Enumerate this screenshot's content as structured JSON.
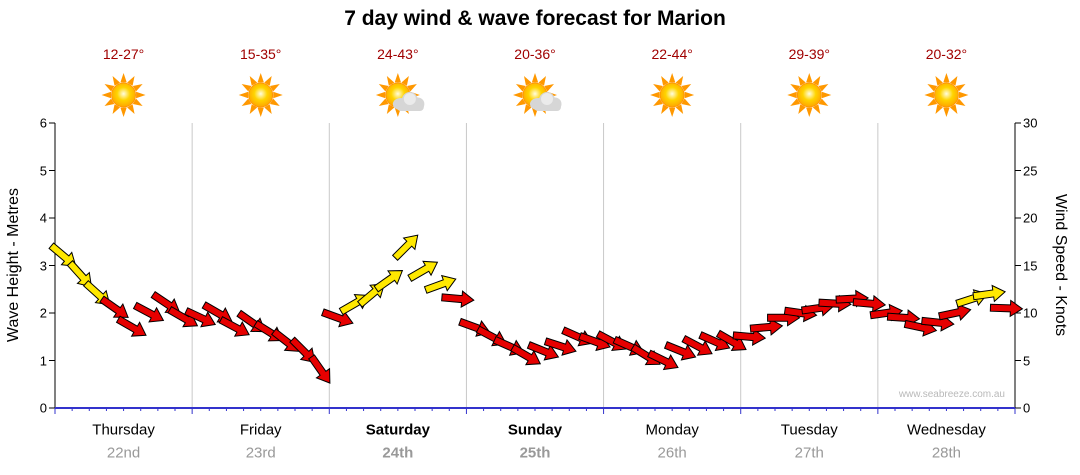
{
  "title": "7 day wind & wave forecast for Marion",
  "watermark": "www.seabreeze.com.au",
  "colors": {
    "red_arrow": "#e60000",
    "yellow_arrow": "#ffe800",
    "grid": "#c9c9c9",
    "axis": "#000000",
    "bottom_axis": "#3333cc",
    "temp_text": "#a00000",
    "date_text": "#999999"
  },
  "left_axis": {
    "title": "Wave Height - Metres",
    "min": 0,
    "max": 6,
    "ticks": [
      0,
      1,
      2,
      3,
      4,
      5,
      6
    ]
  },
  "right_axis": {
    "title": "Wind Speed - Knots",
    "min": 0,
    "max": 30,
    "ticks": [
      0,
      5,
      10,
      15,
      20,
      25,
      30
    ]
  },
  "days": [
    {
      "name": "Thursday",
      "date": "22nd",
      "temp": "12-27°",
      "icon": "sun",
      "weekend": false
    },
    {
      "name": "Friday",
      "date": "23rd",
      "temp": "15-35°",
      "icon": "sun",
      "weekend": false
    },
    {
      "name": "Saturday",
      "date": "24th",
      "temp": "24-43°",
      "icon": "sun-cloud",
      "weekend": true
    },
    {
      "name": "Sunday",
      "date": "25th",
      "temp": "20-36°",
      "icon": "sun-cloud",
      "weekend": true
    },
    {
      "name": "Monday",
      "date": "26th",
      "temp": "22-44°",
      "icon": "sun",
      "weekend": false
    },
    {
      "name": "Tuesday",
      "date": "27th",
      "temp": "29-39°",
      "icon": "sun",
      "weekend": false
    },
    {
      "name": "Wednesday",
      "date": "28th",
      "temp": "20-32°",
      "icon": "sun",
      "weekend": false
    }
  ],
  "chart_data": {
    "type": "line",
    "title": "7 day wind & wave forecast for Marion",
    "x_categories": [
      "Thursday 22nd",
      "Friday 23rd",
      "Saturday 24th",
      "Sunday 25th",
      "Monday 26th",
      "Tuesday 27th",
      "Wednesday 28th"
    ],
    "y_left": {
      "label": "Wave Height - Metres",
      "range": [
        0,
        6
      ]
    },
    "y_right": {
      "label": "Wind Speed - Knots",
      "range": [
        0,
        30
      ]
    },
    "grid": "vertical-day-boundaries",
    "points_format": [
      "time_days",
      "wind_knots",
      "arrow_rotation_deg",
      "arrow_color"
    ],
    "series": [
      {
        "name": "Wind speed & direction",
        "unit": "knots",
        "points": [
          [
            0.0625,
            16,
            40,
            "yellow"
          ],
          [
            0.1875,
            14,
            48,
            "yellow"
          ],
          [
            0.3125,
            12,
            42,
            "yellow"
          ],
          [
            0.4375,
            10.5,
            35,
            "red"
          ],
          [
            0.5625,
            8.5,
            30,
            "red"
          ],
          [
            0.6875,
            10,
            28,
            "red"
          ],
          [
            0.8125,
            11,
            34,
            "red"
          ],
          [
            0.9375,
            9.5,
            30,
            "red"
          ],
          [
            1.0625,
            9.5,
            25,
            "red"
          ],
          [
            1.1875,
            10,
            30,
            "red"
          ],
          [
            1.3125,
            8.5,
            28,
            "red"
          ],
          [
            1.4375,
            9,
            35,
            "red"
          ],
          [
            1.5625,
            8,
            32,
            "red"
          ],
          [
            1.6875,
            7,
            38,
            "red"
          ],
          [
            1.8125,
            6,
            45,
            "red"
          ],
          [
            1.9375,
            4,
            55,
            "red"
          ],
          [
            2.0625,
            9.5,
            20,
            "red"
          ],
          [
            2.1875,
            11,
            -30,
            "yellow"
          ],
          [
            2.3125,
            12,
            -40,
            "yellow"
          ],
          [
            2.4375,
            13.5,
            -35,
            "yellow"
          ],
          [
            2.5625,
            17,
            -45,
            "yellow"
          ],
          [
            2.6875,
            14.5,
            -30,
            "yellow"
          ],
          [
            2.8125,
            13,
            -20,
            "yellow"
          ],
          [
            2.9375,
            11.5,
            5,
            "red"
          ],
          [
            3.0625,
            8.5,
            20,
            "red"
          ],
          [
            3.1875,
            7.5,
            28,
            "red"
          ],
          [
            3.3125,
            6.5,
            24,
            "red"
          ],
          [
            3.4375,
            5.5,
            30,
            "red"
          ],
          [
            3.5625,
            6,
            22,
            "red"
          ],
          [
            3.6875,
            6.5,
            18,
            "red"
          ],
          [
            3.8125,
            7.5,
            24,
            "red"
          ],
          [
            3.9375,
            7,
            20,
            "red"
          ],
          [
            4.0625,
            7,
            28,
            "red"
          ],
          [
            4.1875,
            6.5,
            24,
            "red"
          ],
          [
            4.3125,
            5.5,
            32,
            "red"
          ],
          [
            4.4375,
            5,
            26,
            "red"
          ],
          [
            4.5625,
            6,
            22,
            "red"
          ],
          [
            4.6875,
            6.5,
            28,
            "red"
          ],
          [
            4.8125,
            7,
            24,
            "red"
          ],
          [
            4.9375,
            7,
            30,
            "red"
          ],
          [
            5.0625,
            7.5,
            5,
            "red"
          ],
          [
            5.1875,
            8.5,
            -5,
            "red"
          ],
          [
            5.3125,
            9.5,
            0,
            "red"
          ],
          [
            5.4375,
            10,
            8,
            "red"
          ],
          [
            5.5625,
            10.5,
            -8,
            "red"
          ],
          [
            5.6875,
            11,
            3,
            "red"
          ],
          [
            5.8125,
            11.5,
            -3,
            "red"
          ],
          [
            5.9375,
            11,
            5,
            "red"
          ],
          [
            6.0625,
            10,
            -8,
            "red"
          ],
          [
            6.1875,
            9.5,
            4,
            "red"
          ],
          [
            6.3125,
            8.5,
            12,
            "red"
          ],
          [
            6.4375,
            9,
            6,
            "red"
          ],
          [
            6.5625,
            10,
            -12,
            "red"
          ],
          [
            6.6875,
            11.5,
            -18,
            "yellow"
          ],
          [
            6.8125,
            12,
            -8,
            "yellow"
          ],
          [
            6.9375,
            10.5,
            2,
            "red"
          ]
        ]
      }
    ]
  }
}
